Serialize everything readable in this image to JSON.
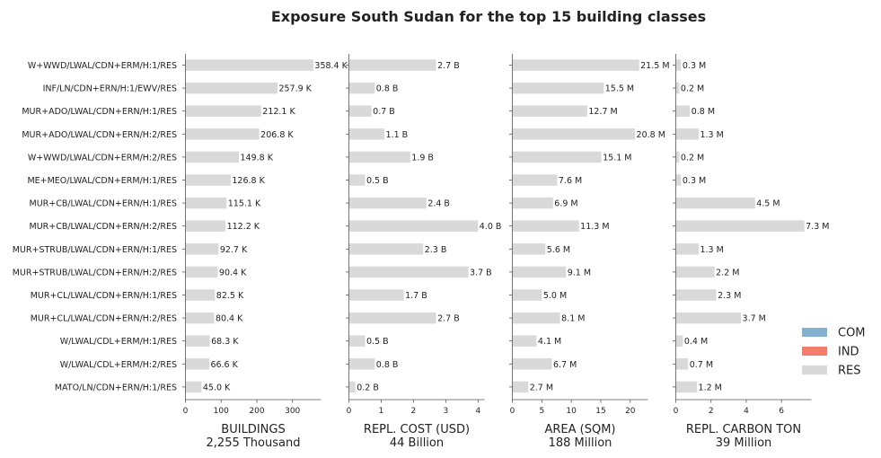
{
  "chart_data": {
    "type": "bar",
    "orientation": "horizontal",
    "title": "Exposure South Sudan for the top 15 building classes",
    "categories": [
      "W+WWD/LWAL/CDN+ERM/H:1/RES",
      "INF/LN/CDN+ERN/H:1/EWV/RES",
      "MUR+ADO/LWAL/CDN+ERN/H:1/RES",
      "MUR+ADO/LWAL/CDN+ERN/H:2/RES",
      "W+WWD/LWAL/CDN+ERM/H:2/RES",
      "ME+MEO/LWAL/CDN+ERM/H:1/RES",
      "MUR+CB/LWAL/CDN+ERN/H:1/RES",
      "MUR+CB/LWAL/CDN+ERN/H:2/RES",
      "MUR+STRUB/LWAL/CDN+ERN/H:1/RES",
      "MUR+STRUB/LWAL/CDN+ERN/H:2/RES",
      "MUR+CL/LWAL/CDN+ERN/H:1/RES",
      "MUR+CL/LWAL/CDN+ERN/H:2/RES",
      "W/LWAL/CDL+ERM/H:1/RES",
      "W/LWAL/CDL+ERM/H:2/RES",
      "MATO/LN/CDN+ERN/H:1/RES"
    ],
    "panels": [
      {
        "xlabel": "BUILDINGS",
        "sublabel": "2,255 Thousand",
        "xlim": [
          0,
          380
        ],
        "xticks": [
          0,
          100,
          200,
          300
        ],
        "values": [
          358.4,
          257.9,
          212.1,
          206.8,
          149.8,
          126.8,
          115.1,
          112.2,
          92.7,
          90.4,
          82.5,
          80.4,
          68.3,
          66.6,
          45.0
        ],
        "value_labels": [
          "358.4 K",
          "257.9 K",
          "212.1 K",
          "206.8 K",
          "149.8 K",
          "126.8 K",
          "115.1 K",
          "112.2 K",
          "92.7 K",
          "90.4 K",
          "82.5 K",
          "80.4 K",
          "68.3 K",
          "66.6 K",
          "45.0 K"
        ]
      },
      {
        "xlabel": "REPL. COST (USD)",
        "sublabel": "44 Billion",
        "xlim": [
          0,
          4.2
        ],
        "xticks": [
          0,
          1,
          2,
          3,
          4
        ],
        "values": [
          2.7,
          0.8,
          0.7,
          1.1,
          1.9,
          0.5,
          2.4,
          4.0,
          2.3,
          3.7,
          1.7,
          2.7,
          0.5,
          0.8,
          0.2
        ],
        "value_labels": [
          "2.7 B",
          "0.8 B",
          "0.7 B",
          "1.1 B",
          "1.9 B",
          "0.5 B",
          "2.4 B",
          "4.0 B",
          "2.3 B",
          "3.7 B",
          "1.7 B",
          "2.7 B",
          "0.5 B",
          "0.8 B",
          "0.2 B"
        ]
      },
      {
        "xlabel": "AREA (SQM)",
        "sublabel": "188 Million",
        "xlim": [
          0,
          23
        ],
        "xticks": [
          0,
          5,
          10,
          15,
          20
        ],
        "values": [
          21.5,
          15.5,
          12.7,
          20.8,
          15.1,
          7.6,
          6.9,
          11.3,
          5.6,
          9.1,
          5.0,
          8.1,
          4.1,
          6.7,
          2.7
        ],
        "value_labels": [
          "21.5 M",
          "15.5 M",
          "12.7 M",
          "20.8 M",
          "15.1 M",
          "7.6 M",
          "6.9 M",
          "11.3 M",
          "5.6 M",
          "9.1 M",
          "5.0 M",
          "8.1 M",
          "4.1 M",
          "6.7 M",
          "2.7 M"
        ]
      },
      {
        "xlabel": "REPL. CARBON TON",
        "sublabel": "39 Million",
        "xlim": [
          0,
          7.7
        ],
        "xticks": [
          0,
          2,
          4,
          6
        ],
        "values": [
          0.3,
          0.2,
          0.8,
          1.3,
          0.2,
          0.3,
          4.5,
          7.3,
          1.3,
          2.2,
          2.3,
          3.7,
          0.4,
          0.7,
          1.2
        ],
        "value_labels": [
          "0.3 M",
          "0.2 M",
          "0.8 M",
          "1.3 M",
          "0.2 M",
          "0.3 M",
          "4.5 M",
          "7.3 M",
          "1.3 M",
          "2.2 M",
          "2.3 M",
          "3.7 M",
          "0.4 M",
          "0.7 M",
          "1.2 M"
        ]
      }
    ],
    "legend": {
      "placement": "lower-right",
      "entries": [
        {
          "name": "COM",
          "color": "#85b1d1"
        },
        {
          "name": "IND",
          "color": "#f47c6c"
        },
        {
          "name": "RES",
          "color": "#d9d9d9"
        }
      ]
    },
    "bar_color": "#d9d9d9",
    "axis_color": "#555555",
    "grid": false
  }
}
